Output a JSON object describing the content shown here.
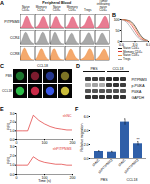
{
  "panel_labels": [
    "A",
    "B",
    "C",
    "D",
    "E",
    "F"
  ],
  "chart_data": [
    {
      "type": "area",
      "header": "Peripheral Blood",
      "columns": [
        "Naive CD4+",
        "Memory CD4+",
        "Naive CD8+",
        "Memory CD8+",
        "Tregs",
        "Tumor infiltrating naive CD4+"
      ],
      "x": [
        0,
        1,
        2,
        3,
        4,
        5,
        6
      ],
      "xlim": [
        0,
        6
      ],
      "ylim": [
        0,
        10
      ],
      "tick_labels": false,
      "series": [
        {
          "name": "PITPNM3",
          "color": "#e0506e",
          "values": [
            [
              0,
              1,
              6,
              10,
              5,
              1,
              0
            ],
            [
              0,
              1,
              3,
              8,
              9,
              3,
              0
            ],
            [
              0,
              2,
              8,
              9,
              3,
              1,
              0
            ],
            [
              0,
              1,
              4,
              9,
              7,
              2,
              0
            ],
            [
              0,
              1,
              2,
              6,
              10,
              5,
              1
            ],
            [
              0,
              0,
              2,
              5,
              9,
              8,
              2
            ]
          ]
        },
        {
          "name": "CCR4",
          "color": "#8c8c8c",
          "values": [
            [
              0,
              3,
              9,
              8,
              3,
              1,
              0
            ],
            [
              0,
              1,
              4,
              9,
              8,
              2,
              0
            ],
            [
              0,
              4,
              10,
              6,
              2,
              0,
              0
            ],
            [
              0,
              2,
              6,
              9,
              4,
              1,
              0
            ],
            [
              0,
              1,
              3,
              7,
              9,
              4,
              1
            ],
            [
              0,
              1,
              5,
              9,
              6,
              2,
              0
            ]
          ]
        },
        {
          "name": "CCR8",
          "color": "#f08c3c",
          "values": [
            [
              1,
              6,
              10,
              5,
              2,
              0,
              0
            ],
            [
              0,
              2,
              7,
              9,
              4,
              1,
              0
            ],
            [
              1,
              7,
              9,
              4,
              1,
              0,
              0
            ],
            [
              0,
              3,
              8,
              8,
              3,
              1,
              0
            ],
            [
              0,
              1,
              2,
              5,
              9,
              7,
              2
            ],
            [
              0,
              1,
              3,
              6,
              9,
              5,
              1
            ]
          ]
        }
      ]
    },
    {
      "type": "line",
      "x": [
        0,
        1,
        2,
        3,
        4,
        5,
        6
      ],
      "xlim": [
        0,
        6
      ],
      "xticks": [
        0,
        3,
        6
      ],
      "ylim": [
        0,
        100
      ],
      "yticks": [
        0,
        50,
        100
      ],
      "legend": "bottom",
      "series": [
        {
          "name": "Naive CD4+",
          "color": "#222222",
          "values": [
            100,
            98,
            92,
            70,
            35,
            12,
            4
          ]
        },
        {
          "name": "Memory CD4+",
          "color": "#e03030",
          "values": [
            100,
            95,
            80,
            50,
            20,
            6,
            2
          ]
        },
        {
          "name": "Naive CD8+",
          "color": "#f08c3c",
          "values": [
            100,
            97,
            88,
            62,
            28,
            9,
            3
          ]
        },
        {
          "name": "Tregs",
          "color": "#999999",
          "values": [
            100,
            90,
            65,
            35,
            12,
            4,
            1
          ]
        }
      ]
    },
    {
      "type": "line",
      "title": "shNC",
      "y_label": "F/F0",
      "x": [
        0,
        20,
        40,
        60,
        80,
        100,
        120,
        140,
        160,
        180,
        200
      ],
      "xlim": [
        0,
        200
      ],
      "xticks": [
        0,
        100,
        200
      ],
      "ylim": [
        0,
        3
      ],
      "yticks": [
        0,
        1,
        2,
        3
      ],
      "color": "#e03030",
      "values": [
        1,
        1,
        1,
        2.8,
        2.2,
        1.8,
        1.5,
        1.3,
        1.2,
        1.1,
        1.1
      ]
    },
    {
      "type": "line",
      "title": "shPITPNM3",
      "y_label": "F/F0",
      "x_label": "Time (s)",
      "x": [
        0,
        20,
        40,
        60,
        80,
        100,
        120,
        140,
        160,
        180,
        200
      ],
      "xlim": [
        0,
        200
      ],
      "xticks": [
        0,
        100,
        200
      ],
      "ylim": [
        0,
        3
      ],
      "yticks": [
        0,
        1,
        2,
        3
      ],
      "color": "#e03030",
      "values": [
        1,
        1,
        1,
        1.9,
        1.5,
        1.3,
        1.2,
        1.1,
        1.1,
        1,
        1
      ]
    },
    {
      "type": "bar",
      "y_label": "Relative migration",
      "categories": [
        "shNC",
        "shPITPNM3",
        "shNC",
        "shPITPNM3"
      ],
      "groups": [
        "PBS",
        "CCL18"
      ],
      "values": [
        1,
        0.9,
        5.2,
        2.1
      ],
      "errors": [
        0.1,
        0.12,
        0.45,
        0.3
      ],
      "color": "#2f5fa8",
      "ylim": [
        0,
        6
      ],
      "yticks": [
        0,
        2,
        4,
        6
      ],
      "significance": "**"
    }
  ],
  "panel_c": {
    "header": "CCL18",
    "rows": [
      "PBS",
      "CCL18"
    ],
    "colors": [
      "#30d050",
      "#e03050",
      "#4060ff",
      "#e0d040"
    ]
  },
  "panel_d": {
    "columns": [
      "PBS",
      "CCL18"
    ],
    "rows": [
      "PITPNM3",
      "p-PI4KA",
      "PI4KA",
      "GAPDH"
    ],
    "bands": [
      [
        0.8,
        0.8,
        0.75,
        0.9,
        0.9,
        0.85
      ],
      [
        0.3,
        0.35,
        0.3,
        0.8,
        0.85,
        0.8
      ],
      [
        0.7,
        0.7,
        0.7,
        0.7,
        0.72,
        0.7
      ],
      [
        0.85,
        0.85,
        0.85,
        0.85,
        0.85,
        0.85
      ]
    ]
  }
}
